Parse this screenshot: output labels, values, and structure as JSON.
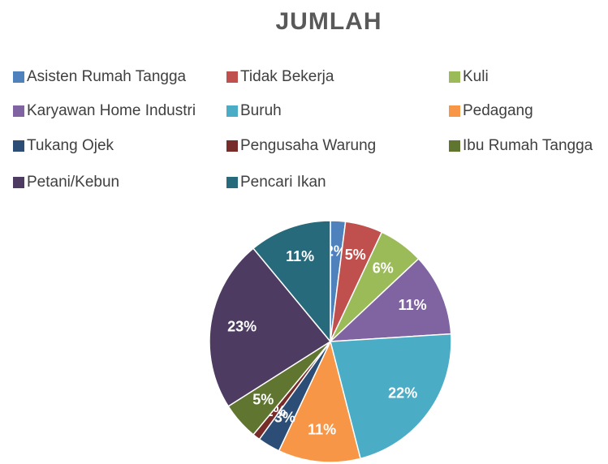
{
  "chart_data": {
    "type": "pie",
    "title": "JUMLAH",
    "categories": [
      "Asisten Rumah Tangga",
      "Tidak Bekerja",
      "Kuli",
      "Karyawan Home Industri",
      "Buruh",
      "Pedagang",
      "Tukang Ojek",
      "Pengusaha Warung",
      "Ibu Rumah Tangga",
      "Petani/Kebun",
      "Pencari Ikan"
    ],
    "values": [
      2,
      5,
      6,
      11,
      22,
      11,
      3,
      1,
      5,
      23,
      11
    ],
    "value_labels": [
      "2%",
      "5%",
      "6%",
      "11%",
      "22%",
      "11%",
      "3%",
      "1%",
      "5%",
      "23%",
      "11%"
    ],
    "colors": [
      "#4f81bd",
      "#c0504d",
      "#9bbb59",
      "#8064a2",
      "#4bacc6",
      "#f79646",
      "#2c4d75",
      "#772c2a",
      "#5f7530",
      "#4d3b62",
      "#276a7c"
    ],
    "legend": "top"
  }
}
